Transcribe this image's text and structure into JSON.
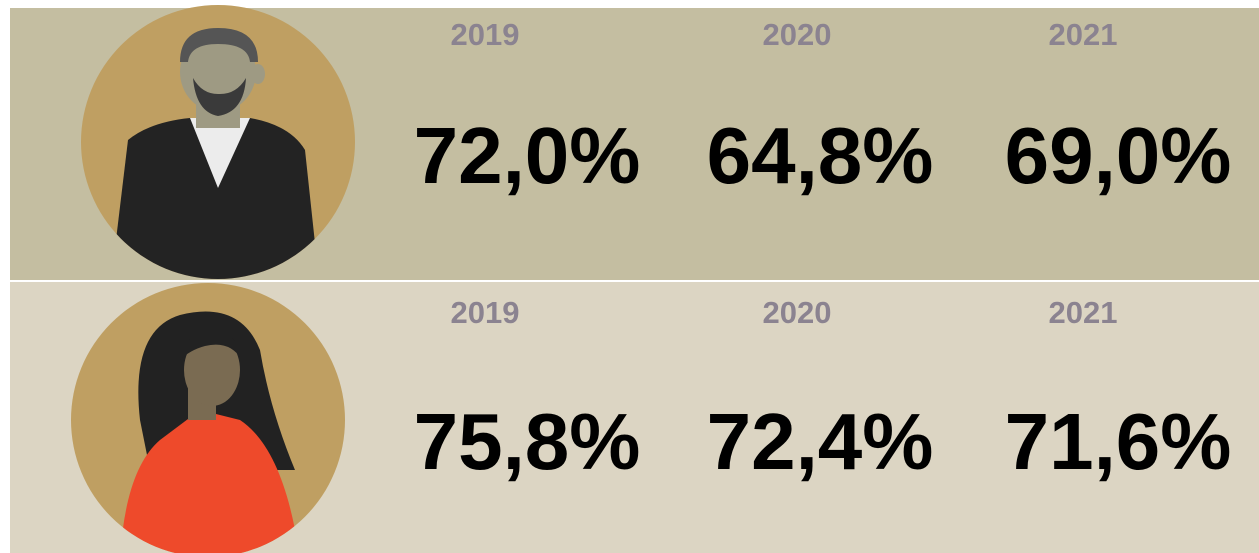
{
  "rows": [
    {
      "cells": [
        {
          "year": "2019",
          "value": "72,0%"
        },
        {
          "year": "2020",
          "value": "64,8%"
        },
        {
          "year": "2021",
          "value": "69,0%"
        }
      ]
    },
    {
      "cells": [
        {
          "year": "2019",
          "value": "75,8%"
        },
        {
          "year": "2020",
          "value": "72,4%"
        },
        {
          "year": "2021",
          "value": "71,6%"
        }
      ]
    }
  ]
}
